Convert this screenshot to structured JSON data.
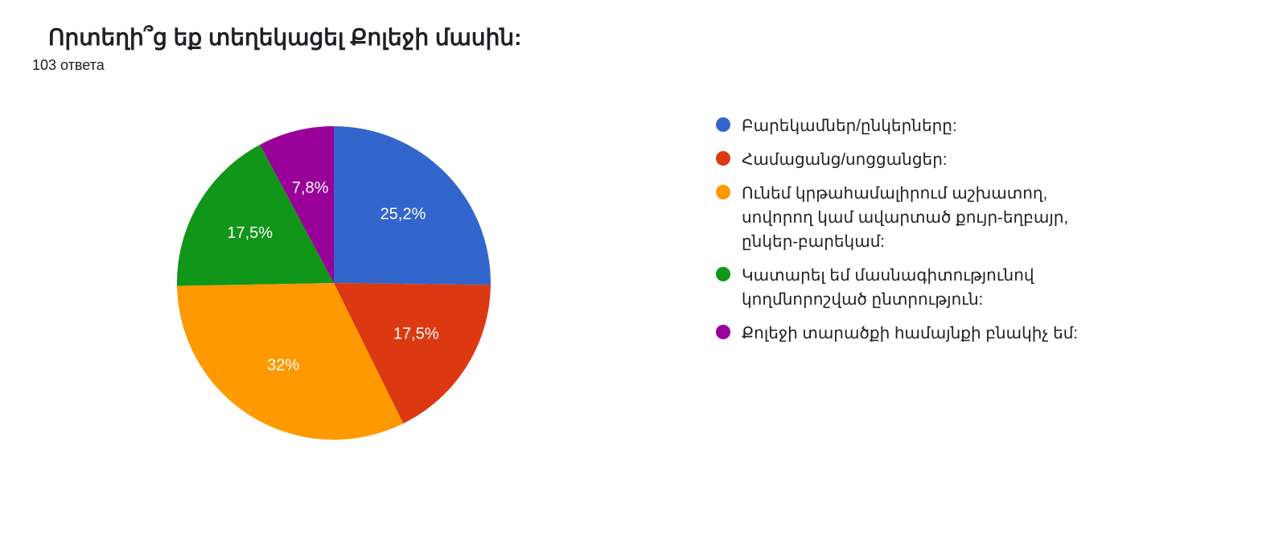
{
  "title": "Որտեղի՞ց եք տեղեկացել Քոլեջի մասին:",
  "subtitle": "103 ответа",
  "chart": {
    "type": "pie",
    "background_color": "#ffffff",
    "label_color": "#ffffff",
    "label_fontsize": 20,
    "title_color": "#202124",
    "title_fontsize": 28,
    "radius": 195,
    "start_angle": -90,
    "slices": [
      {
        "label": "Բարեկամներ/ընկերները:",
        "value": 25.2,
        "display": "25,2%",
        "color": "#3366cc"
      },
      {
        "label": "Համացանց/սոցցանցեր:",
        "value": 17.5,
        "display": "17,5%",
        "color": "#dc3912"
      },
      {
        "label": "Ունեմ կրթահամալիրում աշխատող, սովորող կամ ավարտած քույր-եղբայր, ընկեր-բարեկամ:",
        "value": 32.0,
        "display": "32%",
        "color": "#ff9900"
      },
      {
        "label": "Կատարել եմ մասնագիտությունով կողմնորոշված ընտրություն:",
        "value": 17.5,
        "display": "17,5%",
        "color": "#109618"
      },
      {
        "label": "Քոլեջի տարածքի համայնքի բնակիչ եմ:",
        "value": 7.8,
        "display": "7,8%",
        "color": "#990099"
      }
    ]
  }
}
